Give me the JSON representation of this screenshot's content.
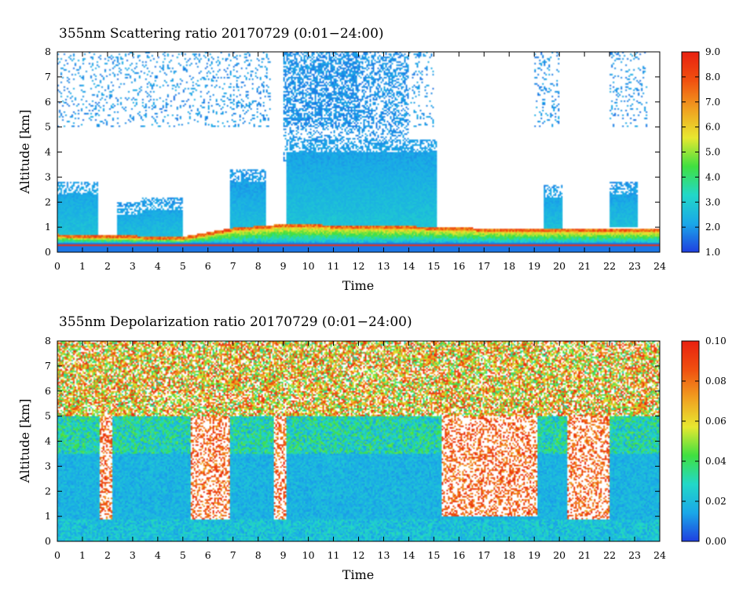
{
  "chart_data": [
    {
      "type": "heatmap",
      "title": "355nm Scattering ratio  20170729 (0:01−24:00)",
      "xlabel": "Time",
      "ylabel": "Altitude [km]",
      "xlim": [
        0,
        24
      ],
      "ylim": [
        0,
        8
      ],
      "x_ticks": [
        "0",
        "1",
        "2",
        "3",
        "4",
        "5",
        "6",
        "7",
        "8",
        "9",
        "10",
        "11",
        "12",
        "13",
        "14",
        "15",
        "16",
        "17",
        "18",
        "19",
        "20",
        "21",
        "22",
        "23",
        "24"
      ],
      "y_ticks": [
        "0",
        "1",
        "2",
        "3",
        "4",
        "5",
        "6",
        "7",
        "8"
      ],
      "colorbar": {
        "range": [
          1.0,
          9.0
        ],
        "ticks": [
          "1.0",
          "2.0",
          "3.0",
          "4.0",
          "5.0",
          "6.0",
          "7.0",
          "8.0",
          "9.0"
        ],
        "colors": [
          "#1f3fe0",
          "#1aa8e8",
          "#22d8c8",
          "#40e040",
          "#e8e830",
          "#f0a020",
          "#f05010",
          "#e82010"
        ]
      },
      "features": {
        "boundary_layer_top_km": [
          {
            "time": 0,
            "value": 0.6
          },
          {
            "time": 5,
            "value": 0.5
          },
          {
            "time": 7,
            "value": 0.85
          },
          {
            "time": 9,
            "value": 1.0
          },
          {
            "time": 15,
            "value": 0.9
          },
          {
            "time": 18,
            "value": 0.8
          },
          {
            "time": 24,
            "value": 0.8
          }
        ],
        "cloud_regions": [
          {
            "start": 0,
            "end": 1.6,
            "base": 0.6,
            "top": 2.8,
            "value": 2.0
          },
          {
            "start": 2.4,
            "end": 3.4,
            "base": 0.6,
            "top": 2.0,
            "value": 1.9
          },
          {
            "start": 3.3,
            "end": 5.0,
            "base": 0.6,
            "top": 2.2,
            "value": 1.9
          },
          {
            "start": 6.9,
            "end": 8.3,
            "base": 0.8,
            "top": 3.3,
            "value": 1.9
          },
          {
            "start": 9.1,
            "end": 15.1,
            "base": 1.0,
            "top": 4.5,
            "value": 2.0
          },
          {
            "start": 19.4,
            "end": 20.1,
            "base": 0.9,
            "top": 2.7,
            "value": 1.9
          },
          {
            "start": 22.0,
            "end": 23.1,
            "base": 1.0,
            "top": 2.8,
            "value": 1.9
          }
        ]
      }
    },
    {
      "type": "heatmap",
      "title": "355nm Depolarization ratio  20170729 (0:01−24:00)",
      "xlabel": "Time",
      "ylabel": "Altitude [km]",
      "xlim": [
        0,
        24
      ],
      "ylim": [
        0,
        8
      ],
      "x_ticks": [
        "0",
        "1",
        "2",
        "3",
        "4",
        "5",
        "6",
        "7",
        "8",
        "9",
        "10",
        "11",
        "12",
        "13",
        "14",
        "15",
        "16",
        "17",
        "18",
        "19",
        "20",
        "21",
        "22",
        "23",
        "24"
      ],
      "y_ticks": [
        "0",
        "1",
        "2",
        "3",
        "4",
        "5",
        "6",
        "7",
        "8"
      ],
      "colorbar": {
        "range": [
          0.0,
          0.1
        ],
        "ticks": [
          "0.00",
          "0.02",
          "0.04",
          "0.06",
          "0.08",
          "0.10"
        ],
        "colors": [
          "#1f3fe0",
          "#1aa8e8",
          "#22d8c8",
          "#40e040",
          "#e8e830",
          "#f0a020",
          "#f05010",
          "#e82010"
        ]
      },
      "features": {
        "background_value": 0.018,
        "upper_noise_value": 0.09,
        "clear_gaps_with_no_data": [
          {
            "start": 1.7,
            "end": 2.2,
            "base": 0.9,
            "top": 5.0
          },
          {
            "start": 5.3,
            "end": 6.9,
            "base": 0.9,
            "top": 5.0
          },
          {
            "start": 8.6,
            "end": 9.1,
            "base": 0.9,
            "top": 5.0
          },
          {
            "start": 15.3,
            "end": 19.1,
            "base": 1.0,
            "top": 5.0
          },
          {
            "start": 20.3,
            "end": 22.0,
            "base": 0.9,
            "top": 5.0
          }
        ]
      }
    }
  ]
}
